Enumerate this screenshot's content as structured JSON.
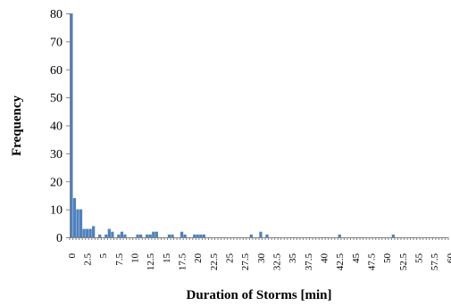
{
  "chart_data": {
    "type": "bar",
    "xlabel": "Duration of Storms [min]",
    "ylabel": "Frequency",
    "ylim": [
      0,
      80
    ],
    "yticks": [
      "0",
      "10",
      "20",
      "30",
      "40",
      "50",
      "60",
      "70",
      "80"
    ],
    "xticks": [
      "0",
      "2.5",
      "5",
      "7.5",
      "10",
      "12.5",
      "15",
      "17.5",
      "20",
      "22.5",
      "25",
      "27.5",
      "30",
      "32.5",
      "35",
      "37.5",
      "40",
      "42.5",
      "45",
      "47.5",
      "50",
      "52.5",
      "55",
      "57.5",
      "60"
    ],
    "xlim": [
      0,
      60
    ],
    "bin_width": 0.5,
    "grid": false,
    "legend": "none",
    "colors": {
      "bar": "#4f81bd",
      "axis": "#808080"
    },
    "bins": [
      {
        "x": 0,
        "value": 80
      },
      {
        "x": 0.5,
        "value": 14
      },
      {
        "x": 1,
        "value": 10
      },
      {
        "x": 1.5,
        "value": 10
      },
      {
        "x": 2,
        "value": 3
      },
      {
        "x": 2.5,
        "value": 3
      },
      {
        "x": 3,
        "value": 3
      },
      {
        "x": 3.5,
        "value": 4
      },
      {
        "x": 4.5,
        "value": 1
      },
      {
        "x": 5.5,
        "value": 1
      },
      {
        "x": 6,
        "value": 3
      },
      {
        "x": 6.5,
        "value": 2
      },
      {
        "x": 7.5,
        "value": 1
      },
      {
        "x": 8,
        "value": 2
      },
      {
        "x": 8.5,
        "value": 1
      },
      {
        "x": 10.5,
        "value": 1
      },
      {
        "x": 11,
        "value": 1
      },
      {
        "x": 12,
        "value": 1
      },
      {
        "x": 12.5,
        "value": 1
      },
      {
        "x": 13,
        "value": 2
      },
      {
        "x": 13.5,
        "value": 2
      },
      {
        "x": 15.5,
        "value": 1
      },
      {
        "x": 16,
        "value": 1
      },
      {
        "x": 17.5,
        "value": 2
      },
      {
        "x": 18,
        "value": 1
      },
      {
        "x": 19.5,
        "value": 1
      },
      {
        "x": 20,
        "value": 1
      },
      {
        "x": 20.5,
        "value": 1
      },
      {
        "x": 21,
        "value": 1
      },
      {
        "x": 28.5,
        "value": 1
      },
      {
        "x": 30,
        "value": 2
      },
      {
        "x": 31,
        "value": 1
      },
      {
        "x": 42.5,
        "value": 1
      },
      {
        "x": 51,
        "value": 1
      }
    ]
  }
}
